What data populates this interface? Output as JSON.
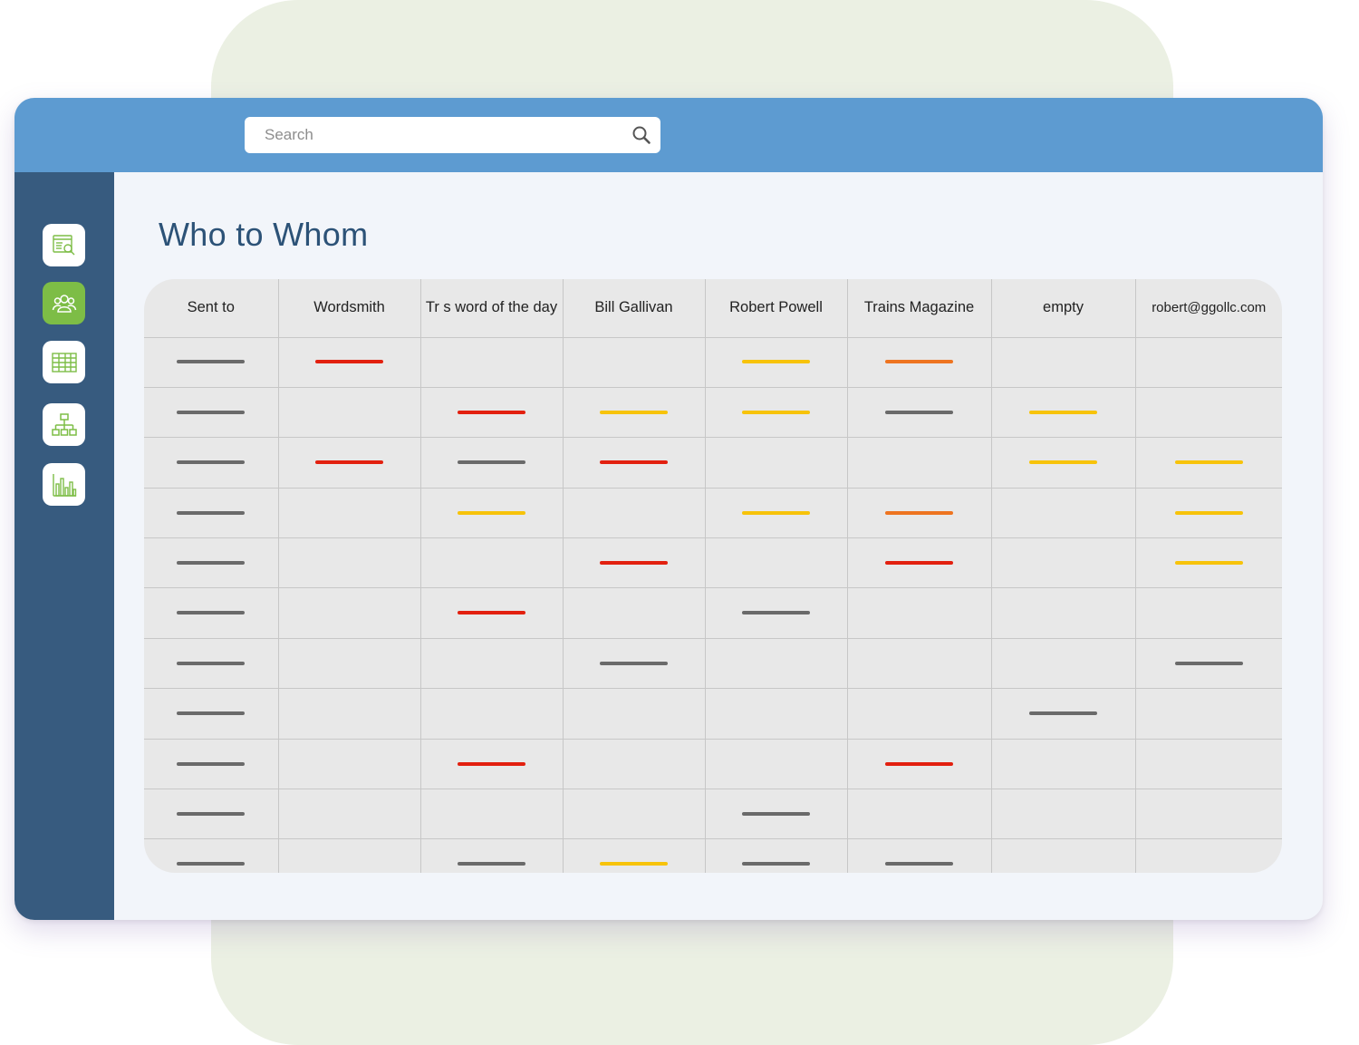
{
  "search": {
    "placeholder": "Search"
  },
  "sidebar": {
    "items": [
      {
        "name": "report-search",
        "active": false
      },
      {
        "name": "people",
        "active": true
      },
      {
        "name": "spreadsheet",
        "active": false
      },
      {
        "name": "hierarchy",
        "active": false
      },
      {
        "name": "bar-chart",
        "active": false
      }
    ]
  },
  "main": {
    "title": "Who to Whom",
    "table": {
      "columns": [
        "Sent to",
        "Wordsmith",
        "Tr s word of the day",
        "Bill Gallivan",
        "Robert Powell",
        "Trains Magazine",
        "empty",
        "robert@ggollc.com"
      ],
      "rows": [
        [
          "gray",
          "red",
          "",
          "",
          "yellow",
          "orange",
          "",
          ""
        ],
        [
          "gray",
          "",
          "red",
          "yellow",
          "yellow",
          "gray",
          "yellow",
          ""
        ],
        [
          "gray",
          "red",
          "gray",
          "red",
          "",
          "",
          "yellow",
          "yellow"
        ],
        [
          "gray",
          "",
          "yellow",
          "",
          "yellow",
          "orange",
          "",
          "yellow"
        ],
        [
          "gray",
          "",
          "",
          "red",
          "",
          "red",
          "",
          "yellow"
        ],
        [
          "gray",
          "",
          "red",
          "",
          "gray",
          "",
          "",
          ""
        ],
        [
          "gray",
          "",
          "",
          "gray",
          "",
          "",
          "",
          "gray"
        ],
        [
          "gray",
          "",
          "",
          "",
          "",
          "",
          "gray",
          ""
        ],
        [
          "gray",
          "",
          "red",
          "",
          "",
          "red",
          "",
          ""
        ],
        [
          "gray",
          "",
          "",
          "",
          "gray",
          "",
          "",
          ""
        ],
        [
          "gray",
          "",
          "gray",
          "yellow",
          "gray",
          "gray",
          "",
          ""
        ]
      ]
    }
  },
  "colors": {
    "topbar": "#5d9bd1",
    "sidebar": "#375b7f",
    "accent_green": "#7dbd46",
    "title": "#2c5277",
    "bar_gray": "#6a6a6a",
    "bar_red": "#e2200f",
    "bar_yellow": "#f7c30a",
    "bar_orange": "#ee7420"
  }
}
